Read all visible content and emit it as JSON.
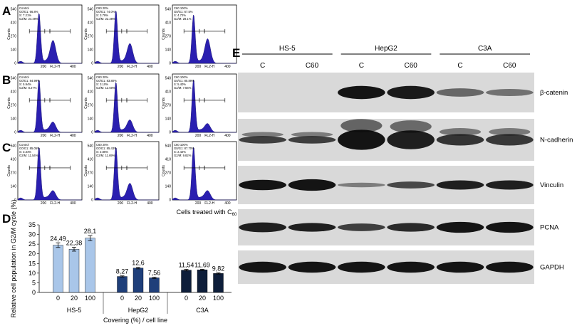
{
  "panel_labels": {
    "A": "A",
    "B": "B",
    "C": "C",
    "D": "D",
    "E": "E"
  },
  "flow": {
    "x_axis_label": "FL2-H",
    "y_axis_label": "Counts",
    "x_ticks": [
      "200",
      "400"
    ],
    "y_ticks": [
      "0",
      "140",
      "270",
      "410",
      "540"
    ],
    "caption_prefix": "Cells treated with C",
    "caption_sub": "60",
    "rows": [
      {
        "label": "A",
        "panels": [
          {
            "lines": [
              "Control",
              "G0/G1: 66.8%",
              "S: 7.21%",
              "G2/M: 24.49%"
            ],
            "peak1": 0.95,
            "peak2": 0.42
          },
          {
            "lines": [
              "C60 20%",
              "G0/G1: 74.0%",
              "S: 3.79%",
              "G2/M: 22.38%"
            ],
            "peak1": 1.0,
            "peak2": 0.36
          },
          {
            "lines": [
              "C60 100%",
              "G0/G1: 67.5%",
              "S: 4.72%",
              "G2/M: 28.1%"
            ],
            "peak1": 0.92,
            "peak2": 0.45
          }
        ]
      },
      {
        "label": "B",
        "panels": [
          {
            "lines": [
              "Control",
              "G0/G1: 84.99%",
              "S: 5.94%",
              "G2/M: 8.27%"
            ],
            "peak1": 1.0,
            "peak2": 0.18
          },
          {
            "lines": [
              "C60 20%",
              "G0/G1: 83.80%",
              "S: 3.10%",
              "G2/M: 12.60%"
            ],
            "peak1": 0.95,
            "peak2": 0.22
          },
          {
            "lines": [
              "C60 100%",
              "G0/G1: 85.89%",
              "S: 5.40%",
              "G2/M: 7.56%"
            ],
            "peak1": 1.0,
            "peak2": 0.15
          }
        ]
      },
      {
        "label": "C",
        "panels": [
          {
            "lines": [
              "Control",
              "G0/G1: 85.05%",
              "S: 3.34%",
              "G2/M: 11.54%"
            ],
            "peak1": 1.0,
            "peak2": 0.16
          },
          {
            "lines": [
              "C60 20%",
              "G0/G1: 85.43%",
              "S: 2.85%",
              "G2/M: 11.69%"
            ],
            "peak1": 1.0,
            "peak2": 0.3
          },
          {
            "lines": [
              "C60 100%",
              "G0/G1: 87.70%",
              "S: 2.42%",
              "G2/M: 9.82%"
            ],
            "peak1": 1.0,
            "peak2": 0.16
          }
        ]
      }
    ]
  },
  "chart_data": {
    "type": "bar",
    "ylabel": "Relative cell population in G2/M cycle (%)",
    "xlabel": "Covering (%) / cell line",
    "ylim": [
      0,
      35
    ],
    "yticks": [
      "0",
      "5",
      "10",
      "15",
      "20",
      "25",
      "30",
      "35"
    ],
    "groups": [
      {
        "name": "HS-5",
        "categories": [
          "0",
          "20",
          "100"
        ],
        "values": [
          24.49,
          22.38,
          28.1
        ],
        "labels": [
          "24,49",
          "22,38",
          "28,1"
        ],
        "errors": [
          1.2,
          1.0,
          1.3
        ],
        "color": "#a9c6e9"
      },
      {
        "name": "HepG2",
        "categories": [
          "0",
          "20",
          "100"
        ],
        "values": [
          8.27,
          12.6,
          7.56
        ],
        "labels": [
          "8,27",
          "12,6",
          "7,56"
        ],
        "errors": [
          0.3,
          0.4,
          0.3
        ],
        "color": "#1f3f7a"
      },
      {
        "name": "C3A",
        "categories": [
          "0",
          "20",
          "100"
        ],
        "values": [
          11.54,
          11.69,
          9.82
        ],
        "labels": [
          "11,54",
          "11,69",
          "9,82"
        ],
        "errors": [
          0.4,
          0.3,
          0.3
        ],
        "color": "#0e1e3a"
      }
    ]
  },
  "blot": {
    "cell_lines": [
      "HS-5",
      "HepG2",
      "C3A"
    ],
    "lanes": [
      "C",
      "C60",
      "C",
      "C60",
      "C",
      "C60"
    ],
    "proteins": [
      {
        "name": "β-catenin",
        "intensity": [
          0,
          0,
          0.95,
          0.92,
          0.55,
          0.5
        ],
        "thick": [
          0,
          0,
          0.55,
          0.55,
          0.35,
          0.3
        ],
        "double": false
      },
      {
        "name": "N-cadherin",
        "intensity": [
          0.75,
          0.75,
          0.95,
          0.9,
          0.8,
          0.78
        ],
        "thick": [
          0.3,
          0.3,
          0.8,
          0.75,
          0.45,
          0.45
        ],
        "double": true
      },
      {
        "name": "Vinculin",
        "intensity": [
          0.95,
          0.95,
          0.45,
          0.7,
          0.9,
          0.9
        ],
        "thick": [
          0.45,
          0.5,
          0.2,
          0.3,
          0.4,
          0.4
        ],
        "double": false
      },
      {
        "name": "PCNA",
        "intensity": [
          0.9,
          0.9,
          0.75,
          0.85,
          0.95,
          0.95
        ],
        "thick": [
          0.45,
          0.4,
          0.35,
          0.4,
          0.5,
          0.5
        ],
        "double": false
      },
      {
        "name": "GAPDH",
        "intensity": [
          0.95,
          0.95,
          0.95,
          0.95,
          0.95,
          0.95
        ],
        "thick": [
          0.55,
          0.55,
          0.55,
          0.55,
          0.55,
          0.55
        ],
        "double": false
      }
    ]
  },
  "colors": {
    "histogram_fill": "#2a1fb0",
    "histogram_edge": "#15106a",
    "blot_bg": "#d9d9d9",
    "band": "#0a0a0a"
  }
}
